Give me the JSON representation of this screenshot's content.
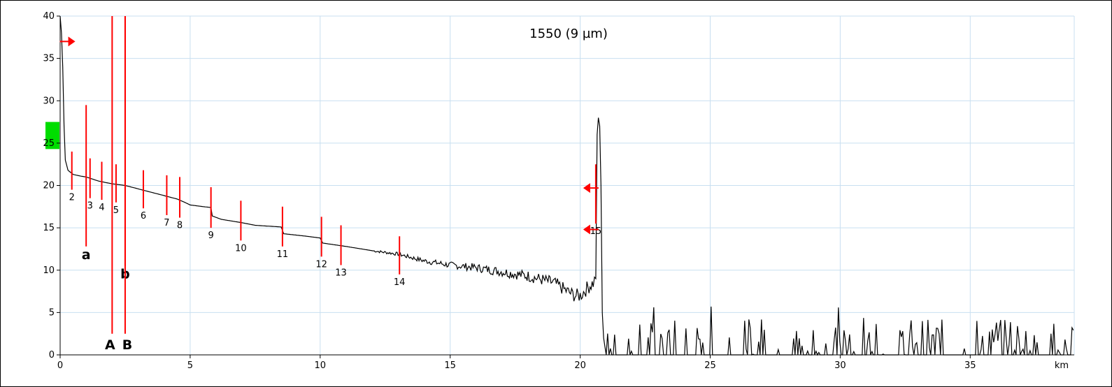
{
  "chart_data": {
    "type": "line",
    "title": "1550 (9 µm)",
    "xlabel": "",
    "ylabel": "",
    "x_unit": "km",
    "xlim": [
      0,
      39
    ],
    "ylim": [
      0,
      40
    ],
    "x_ticks": [
      0,
      5,
      10,
      15,
      20,
      25,
      30,
      35
    ],
    "y_ticks": [
      0,
      5,
      10,
      15,
      20,
      25,
      30,
      35,
      40
    ],
    "grid": true,
    "colors": {
      "trace": "#000000",
      "grid": "#c8dff0",
      "event": "#ff0000",
      "marker": "#00dd00"
    },
    "y_marker_range": [
      24.3,
      27.5
    ],
    "series": [
      {
        "points": [
          [
            0,
            40
          ],
          [
            0.05,
            38
          ],
          [
            0.1,
            34
          ],
          [
            0.15,
            27
          ],
          [
            0.2,
            23
          ],
          [
            0.3,
            21.8
          ],
          [
            0.5,
            21.3
          ],
          [
            0.8,
            21.1
          ],
          [
            1.0,
            21.0
          ],
          [
            1.2,
            20.8
          ],
          [
            1.5,
            20.5
          ],
          [
            2.0,
            20.2
          ],
          [
            2.5,
            20.0
          ],
          [
            3.0,
            19.6
          ],
          [
            3.5,
            19.2
          ],
          [
            4.0,
            18.8
          ],
          [
            4.5,
            18.4
          ],
          [
            4.8,
            18.0
          ],
          [
            5.0,
            17.7
          ],
          [
            5.5,
            17.5
          ],
          [
            5.8,
            17.4
          ],
          [
            5.85,
            16.4
          ],
          [
            6.2,
            16.0
          ],
          [
            7.0,
            15.6
          ],
          [
            7.5,
            15.3
          ],
          [
            8.5,
            15.1
          ],
          [
            8.6,
            14.3
          ],
          [
            9.5,
            14.0
          ],
          [
            10.0,
            13.8
          ],
          [
            10.1,
            13.2
          ],
          [
            11.0,
            12.8
          ],
          [
            12.0,
            12.3
          ],
          [
            13.0,
            11.9
          ],
          [
            14.0,
            11.1
          ],
          [
            15.0,
            10.6
          ],
          [
            16.0,
            10.3
          ],
          [
            17.0,
            9.8
          ],
          [
            18.0,
            9.3
          ],
          [
            19.0,
            8.5
          ],
          [
            19.5,
            7.5
          ],
          [
            19.8,
            7.0
          ],
          [
            20.0,
            7.0
          ],
          [
            20.3,
            8.0
          ],
          [
            20.5,
            8.5
          ],
          [
            20.6,
            9.0
          ],
          [
            20.65,
            26.0
          ],
          [
            20.7,
            28.0
          ],
          [
            20.75,
            27.0
          ],
          [
            20.8,
            20.0
          ],
          [
            20.85,
            5.0
          ],
          [
            20.9,
            2.0
          ],
          [
            21.0,
            0
          ]
        ],
        "noise_floor": {
          "start_km": 21,
          "end_km": 39,
          "max_db": 7
        }
      }
    ],
    "events": [
      {
        "label": "2",
        "x": 0.45,
        "y_top": 24.0,
        "y_bottom": 19.5
      },
      {
        "label": "3",
        "x": 1.15,
        "y_top": 23.2,
        "y_bottom": 18.5
      },
      {
        "label": "4",
        "x": 1.6,
        "y_top": 22.8,
        "y_bottom": 18.3
      },
      {
        "label": "5",
        "x": 2.15,
        "y_top": 22.5,
        "y_bottom": 18.0
      },
      {
        "label": "6",
        "x": 3.2,
        "y_top": 21.8,
        "y_bottom": 17.3
      },
      {
        "label": "7",
        "x": 4.1,
        "y_top": 21.2,
        "y_bottom": 16.5
      },
      {
        "label": "8",
        "x": 4.6,
        "y_top": 21.0,
        "y_bottom": 16.2
      },
      {
        "label": "9",
        "x": 5.8,
        "y_top": 19.8,
        "y_bottom": 15.0
      },
      {
        "label": "10",
        "x": 6.95,
        "y_top": 18.2,
        "y_bottom": 13.5
      },
      {
        "label": "11",
        "x": 8.55,
        "y_top": 17.5,
        "y_bottom": 12.8
      },
      {
        "label": "12",
        "x": 10.05,
        "y_top": 16.3,
        "y_bottom": 11.6
      },
      {
        "label": "13",
        "x": 10.8,
        "y_top": 15.3,
        "y_bottom": 10.6
      },
      {
        "label": "14",
        "x": 13.05,
        "y_top": 14.0,
        "y_bottom": 9.5
      },
      {
        "label": "15",
        "x": 20.6,
        "y_top": 22.5,
        "y_bottom": 15.5
      }
    ],
    "cursors": [
      {
        "label": "a",
        "x": 1.0,
        "y_top": 29.5,
        "y_bottom": 12.8
      },
      {
        "label": "b",
        "x": 2.5,
        "y_top": 40,
        "y_bottom": 10.5
      },
      {
        "label": "A",
        "x": 2.0,
        "y_top": 40,
        "y_bottom": 2.5
      },
      {
        "label": "B",
        "x": 2.5,
        "y_top": 40,
        "y_bottom": 2.5
      }
    ],
    "arrows": [
      {
        "direction": "right",
        "x": 0.15,
        "y": 37.0
      },
      {
        "direction": "left",
        "x": 20.6,
        "y": 19.7
      },
      {
        "direction": "left",
        "x": 20.6,
        "y": 14.8
      }
    ]
  }
}
